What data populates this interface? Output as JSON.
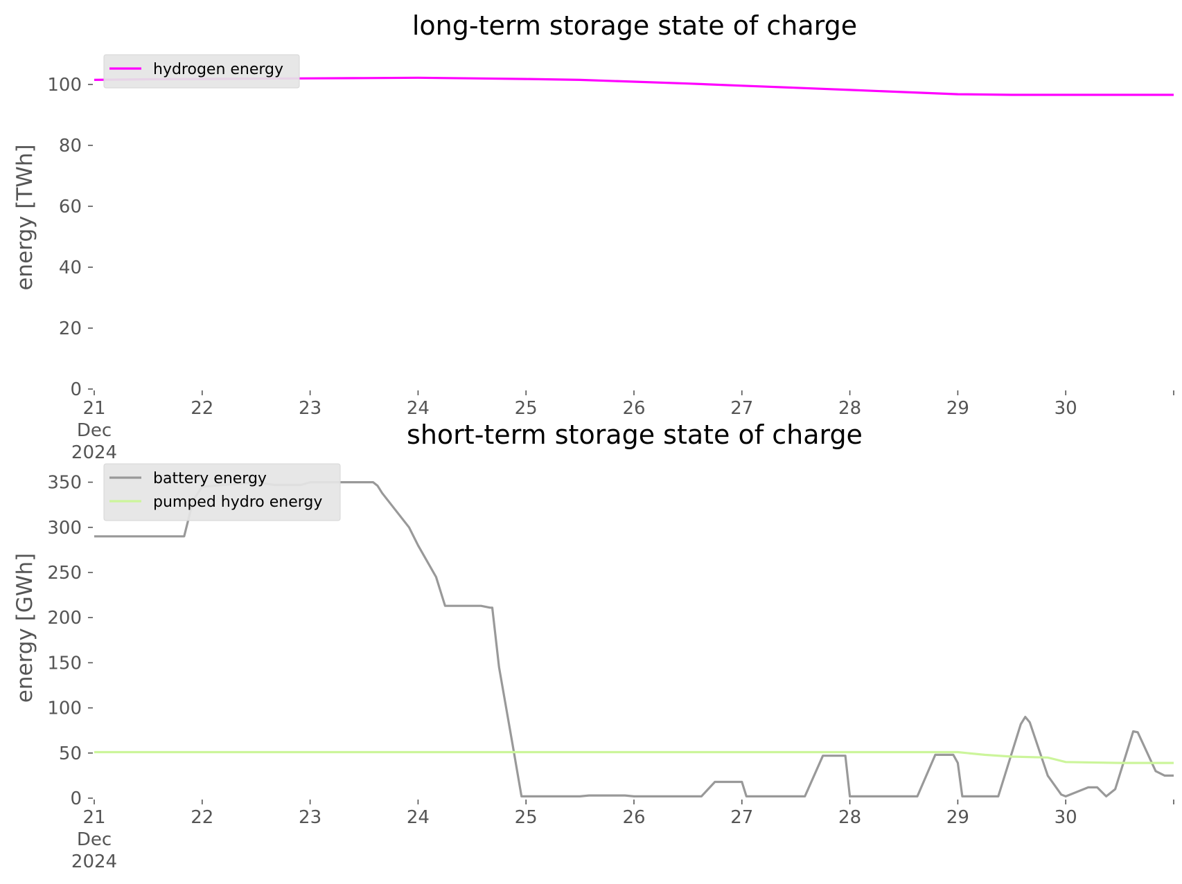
{
  "chart_data": [
    {
      "type": "line",
      "title": "long-term storage state of charge",
      "xlabel": "",
      "ylabel": "energy [TWh]",
      "ylim": [
        0,
        105
      ],
      "xlim": [
        "2024-12-21",
        "2024-12-31"
      ],
      "yticks": [
        "0",
        "20",
        "40",
        "60",
        "80",
        "100"
      ],
      "xtick_labels": [
        "21\nDec\n2024",
        "22",
        "23",
        "24",
        "25",
        "26",
        "27",
        "28",
        "29",
        "30",
        ""
      ],
      "grid": false,
      "legend_position": "top-left",
      "series": [
        {
          "name": "hydrogen energy",
          "color": "#ff00ff",
          "points": [
            [
              "2024-12-21",
              101.5
            ],
            [
              "2024-12-21T12:00",
              101.7
            ],
            [
              "2024-12-22",
              101.8
            ],
            [
              "2024-12-22T12:00",
              101.9
            ],
            [
              "2024-12-23",
              102.0
            ],
            [
              "2024-12-23T12:00",
              102.1
            ],
            [
              "2024-12-24",
              102.2
            ],
            [
              "2024-12-24T12:00",
              102.0
            ],
            [
              "2024-12-25",
              101.8
            ],
            [
              "2024-12-25T12:00",
              101.5
            ],
            [
              "2024-12-26",
              100.9
            ],
            [
              "2024-12-26T12:00",
              100.3
            ],
            [
              "2024-12-27",
              99.6
            ],
            [
              "2024-12-27T12:00",
              98.9
            ],
            [
              "2024-12-28",
              98.2
            ],
            [
              "2024-12-28T12:00",
              97.5
            ],
            [
              "2024-12-29",
              96.8
            ],
            [
              "2024-12-29T12:00",
              96.6
            ],
            [
              "2024-12-30",
              96.6
            ],
            [
              "2024-12-30T12:00",
              96.6
            ],
            [
              "2024-12-31",
              96.6
            ]
          ]
        }
      ]
    },
    {
      "type": "line",
      "title": "short-term storage state of charge",
      "xlabel": "",
      "ylabel": "energy [GWh]",
      "ylim": [
        0,
        365
      ],
      "xlim": [
        "2024-12-21",
        "2024-12-31"
      ],
      "yticks": [
        "0",
        "50",
        "100",
        "150",
        "200",
        "250",
        "300",
        "350"
      ],
      "xtick_labels": [
        "21\nDec\n2024",
        "22",
        "23",
        "24",
        "25",
        "26",
        "27",
        "28",
        "29",
        "30",
        ""
      ],
      "grid": false,
      "legend_position": "top-left",
      "series": [
        {
          "name": "battery energy",
          "color": "#999999",
          "points": [
            [
              "2024-12-21",
              290
            ],
            [
              "2024-12-21T20:00",
              290
            ],
            [
              "2024-12-21T22:00",
              330
            ],
            [
              "2024-12-22",
              345
            ],
            [
              "2024-12-22T12:00",
              350
            ],
            [
              "2024-12-22T16:00",
              347
            ],
            [
              "2024-12-22T22:00",
              347
            ],
            [
              "2024-12-23",
              350
            ],
            [
              "2024-12-23T14:00",
              350
            ],
            [
              "2024-12-23T15:00",
              346
            ],
            [
              "2024-12-23T16:00",
              338
            ],
            [
              "2024-12-23T22:00",
              300
            ],
            [
              "2024-12-24",
              280
            ],
            [
              "2024-12-24T04:00",
              245
            ],
            [
              "2024-12-24T06:00",
              213
            ],
            [
              "2024-12-24T14:00",
              213
            ],
            [
              "2024-12-24T16:00",
              211
            ],
            [
              "2024-12-24T16:30",
              211
            ],
            [
              "2024-12-24T18:00",
              145
            ],
            [
              "2024-12-24T21:00",
              60
            ],
            [
              "2024-12-24T23:00",
              2
            ],
            [
              "2024-12-25T12:00",
              2
            ],
            [
              "2024-12-25T14:00",
              3
            ],
            [
              "2024-12-25T22:00",
              3
            ],
            [
              "2024-12-26T00:00",
              2
            ],
            [
              "2024-12-26T15:00",
              2
            ],
            [
              "2024-12-26T18:00",
              18
            ],
            [
              "2024-12-26T22:00",
              18
            ],
            [
              "2024-12-27T00:00",
              18
            ],
            [
              "2024-12-27",
              18
            ],
            [
              "2024-12-27T01:00",
              2
            ],
            [
              "2024-12-27T14:00",
              2
            ],
            [
              "2024-12-27T18:00",
              47
            ],
            [
              "2024-12-27T23:00",
              47
            ],
            [
              "2024-12-28T00:00",
              2
            ],
            [
              "2024-12-28T15:00",
              2
            ],
            [
              "2024-12-28T19:00",
              48
            ],
            [
              "2024-12-28T23:00",
              48
            ],
            [
              "2024-12-29T00:00",
              39
            ],
            [
              "2024-12-29T01:00",
              2
            ],
            [
              "2024-12-29T09:00",
              2
            ],
            [
              "2024-12-29T14:00",
              82
            ],
            [
              "2024-12-29T15:00",
              90
            ],
            [
              "2024-12-29T16:00",
              84
            ],
            [
              "2024-12-29T20:00",
              25
            ],
            [
              "2024-12-29T23:00",
              4
            ],
            [
              "2024-12-30",
              2
            ],
            [
              "2024-12-30T05:00",
              12
            ],
            [
              "2024-12-30T07:00",
              12
            ],
            [
              "2024-12-30T09:00",
              2
            ],
            [
              "2024-12-30T11:00",
              10
            ],
            [
              "2024-12-30T15:00",
              74
            ],
            [
              "2024-12-30T16:00",
              73
            ],
            [
              "2024-12-30T20:00",
              30
            ],
            [
              "2024-12-30T22:00",
              25
            ],
            [
              "2024-12-31",
              25
            ]
          ]
        },
        {
          "name": "pumped hydro energy",
          "color": "#ccf59b",
          "points": [
            [
              "2024-12-21",
              51
            ],
            [
              "2024-12-28",
              51
            ],
            [
              "2024-12-29",
              51
            ],
            [
              "2024-12-29T06:00",
              48
            ],
            [
              "2024-12-29T12:00",
              46
            ],
            [
              "2024-12-29T20:00",
              45
            ],
            [
              "2024-12-30",
              40
            ],
            [
              "2024-12-30T12:00",
              39
            ],
            [
              "2024-12-31",
              39
            ]
          ]
        }
      ]
    }
  ]
}
